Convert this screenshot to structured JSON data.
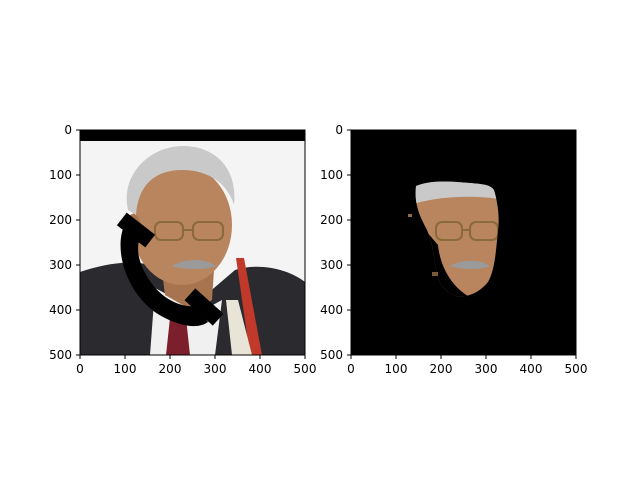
{
  "chart_data": [
    {
      "type": "image",
      "title": "",
      "xlabel": "",
      "ylabel": "",
      "xlim": [
        0,
        500
      ],
      "ylim": [
        500,
        0
      ],
      "xticks": [
        "0",
        "100",
        "200",
        "300",
        "400",
        "500"
      ],
      "yticks": [
        "0",
        "100",
        "200",
        "300",
        "400",
        "500"
      ],
      "content": "portrait photo with black occlusion mask (telephone handset shape) and black band at top"
    },
    {
      "type": "image",
      "title": "",
      "xlabel": "",
      "ylabel": "",
      "xlim": [
        0,
        500
      ],
      "ylim": [
        500,
        0
      ],
      "xticks": [
        "0",
        "100",
        "200",
        "300",
        "400",
        "500"
      ],
      "yticks": [
        "0",
        "100",
        "200",
        "300",
        "400",
        "500"
      ],
      "content": "segmented face region on black background"
    }
  ],
  "colors": {
    "background": "#ffffff",
    "mask": "#000000",
    "suit": "#2b2b2f",
    "skin": "#b8855f",
    "hair": "#c9c9c9",
    "tie": "#7a1f2b",
    "shirt": "#f2f2f2"
  }
}
